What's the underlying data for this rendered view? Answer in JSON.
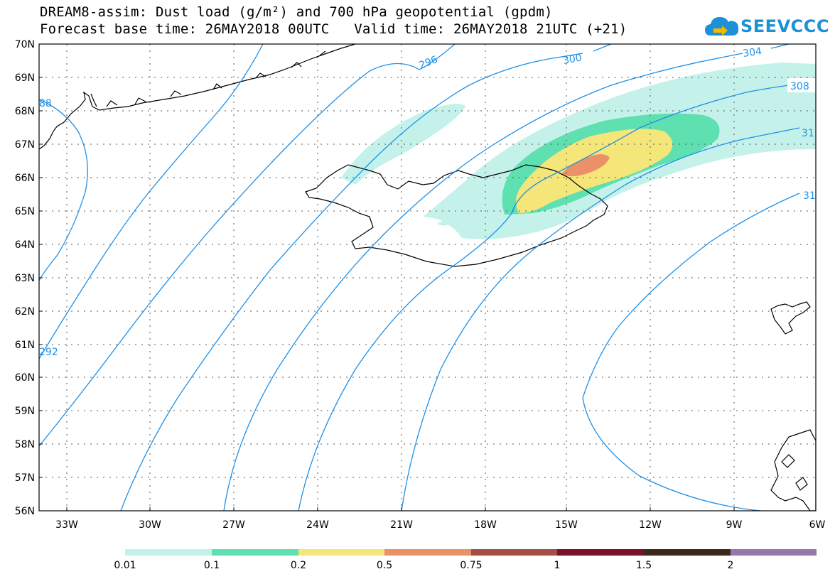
{
  "header": {
    "title_line1": "DREAM8-assim: Dust load (g/m²) and 700 hPa geopotential (gpdm)",
    "title_line2": "Forecast base time: 26MAY2018 00UTC   Valid time: 26MAY2018 21UTC (+21)"
  },
  "logo": {
    "text": "SEEVCCC",
    "icon": "cloud-icon",
    "color": "#1e90d8"
  },
  "map": {
    "lat_labels": [
      "70N",
      "69N",
      "68N",
      "67N",
      "66N",
      "65N",
      "64N",
      "63N",
      "62N",
      "61N",
      "60N",
      "59N",
      "58N",
      "57N",
      "56N"
    ],
    "lon_labels": [
      "33W",
      "30W",
      "27W",
      "24W",
      "21W",
      "18W",
      "15W",
      "12W",
      "9W",
      "6W"
    ],
    "contour_color": "#1e90e8",
    "contour_labels": [
      "88",
      "292",
      "296",
      "300",
      "304",
      "308",
      "31",
      "31"
    ]
  },
  "legend": {
    "colors": [
      "#c4f2ea",
      "#5ee0b0",
      "#f5e67a",
      "#eb9168",
      "#a54e45",
      "#7d0f2c",
      "#3a2818",
      "#9678ad"
    ],
    "labels": [
      "0.01",
      "0.1",
      "0.2",
      "0.5",
      "0.75",
      "1",
      "1.5",
      "2"
    ]
  }
}
